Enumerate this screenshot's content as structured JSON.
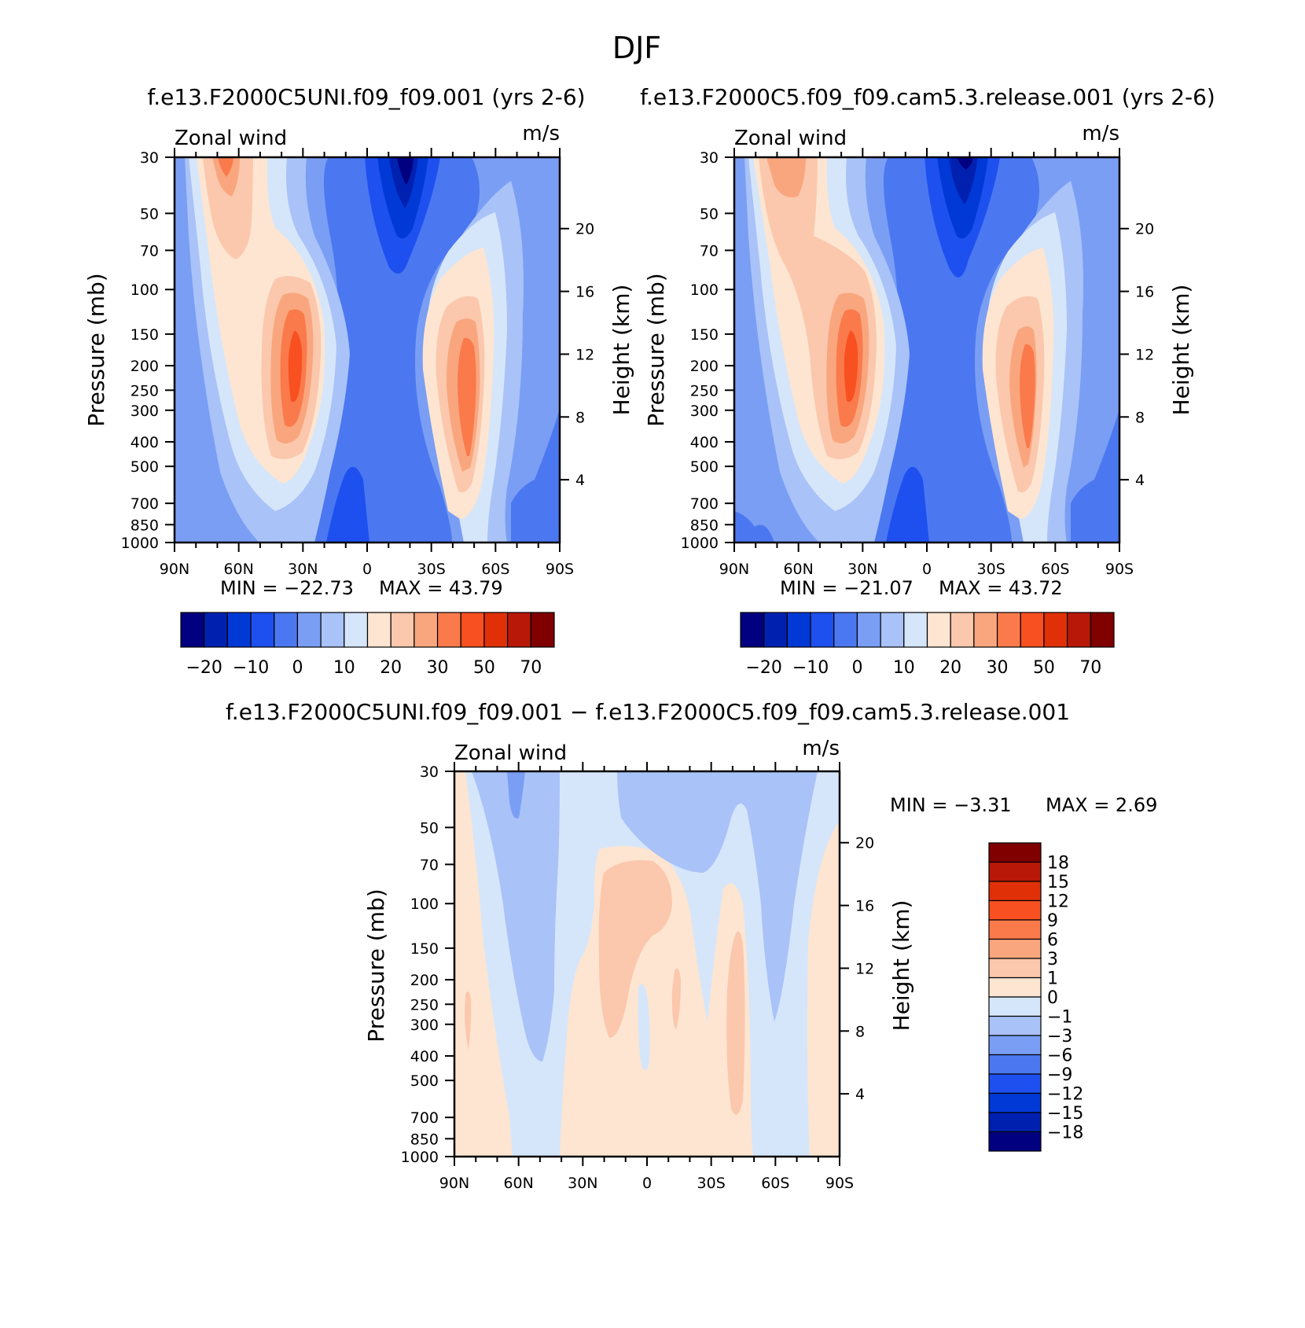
{
  "page_title": "DJF",
  "colors": {
    "main": [
      "#000080",
      "#0021b0",
      "#0039d6",
      "#1e50f0",
      "#4b78f0",
      "#7a9ef4",
      "#a9c2f8",
      "#d6e6fa",
      "#fde5d1",
      "#fbc8ad",
      "#f9a67e",
      "#fa7a4c",
      "#f85020",
      "#e03008",
      "#b81808",
      "#800000"
    ],
    "diff": [
      "#000080",
      "#0021b0",
      "#0039d6",
      "#1e50f0",
      "#4b78f0",
      "#7a9ef4",
      "#a9c2f8",
      "#d6e6fa",
      "#fde5d1",
      "#fbc8ad",
      "#f9a67e",
      "#fa7a4c",
      "#f85020",
      "#e03008",
      "#b81808",
      "#800000"
    ]
  },
  "chart_data": [
    {
      "type": "heatmap",
      "id": "panel1",
      "title": "f.e13.F2000C5UNI.f09_f09.001 (yrs 2-6)",
      "left_label": "Zonal wind",
      "right_label": "m/s",
      "ylabel": "Pressure (mb)",
      "ylabel_right": "Height (km)",
      "x_ticks": [
        "90N",
        "60N",
        "30N",
        "0",
        "30S",
        "60S",
        "90S"
      ],
      "x_range": [
        -90,
        90
      ],
      "y_ticks": [
        "30",
        "50",
        "70",
        "100",
        "150",
        "200",
        "250",
        "300",
        "400",
        "500",
        "700",
        "850",
        "1000"
      ],
      "y_ticks_right": [
        "20",
        "16",
        "12",
        "8",
        "4"
      ],
      "y_range": [
        30,
        1000
      ],
      "min_text": "MIN = −22.73",
      "max_text": "MAX =  43.79",
      "features": [
        {
          "lat": -28,
          "p": 200,
          "value": 43.79
        },
        {
          "lat": -65,
          "p": 30,
          "value": 25
        },
        {
          "lat": 18,
          "p": 30,
          "value": -22.73
        },
        {
          "lat": 48,
          "p": 220,
          "value": 38
        }
      ]
    },
    {
      "type": "heatmap",
      "id": "panel2",
      "title": "f.e13.F2000C5.f09_f09.cam5.3.release.001 (yrs 2-6)",
      "left_label": "Zonal wind",
      "right_label": "m/s",
      "ylabel": "Pressure (mb)",
      "ylabel_right": "Height (km)",
      "x_ticks": [
        "90N",
        "60N",
        "30N",
        "0",
        "30S",
        "60S",
        "90S"
      ],
      "x_range": [
        -90,
        90
      ],
      "y_ticks": [
        "30",
        "50",
        "70",
        "100",
        "150",
        "200",
        "250",
        "300",
        "400",
        "500",
        "700",
        "850",
        "1000"
      ],
      "y_ticks_right": [
        "20",
        "16",
        "12",
        "8",
        "4"
      ],
      "y_range": [
        30,
        1000
      ],
      "min_text": "MIN = −21.07",
      "max_text": "MAX =  43.72",
      "features": [
        {
          "lat": -30,
          "p": 200,
          "value": 43.72
        },
        {
          "lat": -65,
          "p": 30,
          "value": 30
        },
        {
          "lat": 18,
          "p": 30,
          "value": -21.07
        },
        {
          "lat": 48,
          "p": 220,
          "value": 35
        }
      ]
    },
    {
      "type": "heatmap",
      "id": "panel3",
      "title": "f.e13.F2000C5UNI.f09_f09.001 − f.e13.F2000C5.f09_f09.cam5.3.release.001",
      "left_label": "Zonal wind",
      "right_label": "m/s",
      "ylabel": "Pressure (mb)",
      "ylabel_right": "Height (km)",
      "x_ticks": [
        "90N",
        "60N",
        "30N",
        "0",
        "30S",
        "60S",
        "90S"
      ],
      "x_range": [
        -90,
        90
      ],
      "y_ticks": [
        "30",
        "50",
        "70",
        "100",
        "150",
        "200",
        "250",
        "300",
        "400",
        "500",
        "700",
        "850",
        "1000"
      ],
      "y_ticks_right": [
        "20",
        "16",
        "12",
        "8",
        "4"
      ],
      "y_range": [
        30,
        1000
      ],
      "min_text": "MIN =   −3.31",
      "max_text": "MAX =    2.69",
      "features": [
        {
          "lat": 0,
          "p": 110,
          "value": 2.0
        },
        {
          "lat": 40,
          "p": 250,
          "value": 2.69
        },
        {
          "lat": -65,
          "p": 40,
          "value": -3.31
        }
      ]
    }
  ],
  "colorbar_main": {
    "labels": [
      "−20",
      "−10",
      "0",
      "10",
      "20",
      "30",
      "50",
      "70"
    ]
  },
  "colorbar_diff": {
    "labels": [
      "18",
      "15",
      "12",
      "9",
      "6",
      "3",
      "1",
      "0",
      "−1",
      "−3",
      "−6",
      "−9",
      "−12",
      "−15",
      "−18"
    ]
  }
}
